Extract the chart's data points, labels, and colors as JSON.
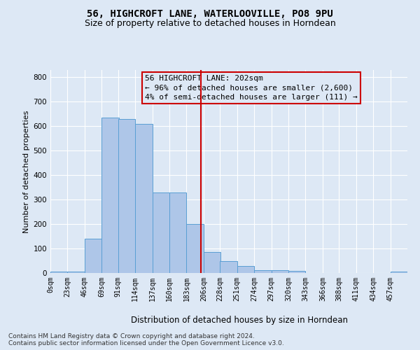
{
  "title": "56, HIGHCROFT LANE, WATERLOOVILLE, PO8 9PU",
  "subtitle": "Size of property relative to detached houses in Horndean",
  "xlabel": "Distribution of detached houses by size in Horndean",
  "ylabel": "Number of detached properties",
  "bin_edges": [
    0,
    23,
    46,
    69,
    91,
    114,
    137,
    160,
    183,
    206,
    228,
    251,
    274,
    297,
    320,
    343,
    366,
    388,
    411,
    434,
    457
  ],
  "bar_heights": [
    5,
    5,
    140,
    635,
    630,
    610,
    330,
    330,
    200,
    85,
    50,
    28,
    12,
    12,
    10,
    0,
    0,
    0,
    0,
    0,
    5
  ],
  "tick_labels": [
    "0sqm",
    "23sqm",
    "46sqm",
    "69sqm",
    "91sqm",
    "114sqm",
    "137sqm",
    "160sqm",
    "183sqm",
    "206sqm",
    "228sqm",
    "251sqm",
    "274sqm",
    "297sqm",
    "320sqm",
    "343sqm",
    "366sqm",
    "388sqm",
    "411sqm",
    "434sqm",
    "457sqm"
  ],
  "bar_color": "#aec6e8",
  "bar_edge_color": "#5a9fd4",
  "vline_x": 202,
  "vline_color": "#cc0000",
  "annotation_text": "56 HIGHCROFT LANE: 202sqm\n← 96% of detached houses are smaller (2,600)\n4% of semi-detached houses are larger (111) →",
  "annotation_box_color": "#cc0000",
  "ylim": [
    0,
    830
  ],
  "yticks": [
    0,
    100,
    200,
    300,
    400,
    500,
    600,
    700,
    800
  ],
  "bg_color": "#dde8f5",
  "grid_color": "#ffffff",
  "footer_line1": "Contains HM Land Registry data © Crown copyright and database right 2024.",
  "footer_line2": "Contains public sector information licensed under the Open Government Licence v3.0.",
  "title_fontsize": 10,
  "subtitle_fontsize": 9,
  "axis_label_fontsize": 8,
  "tick_fontsize": 7,
  "annotation_fontsize": 8,
  "footer_fontsize": 6.5
}
